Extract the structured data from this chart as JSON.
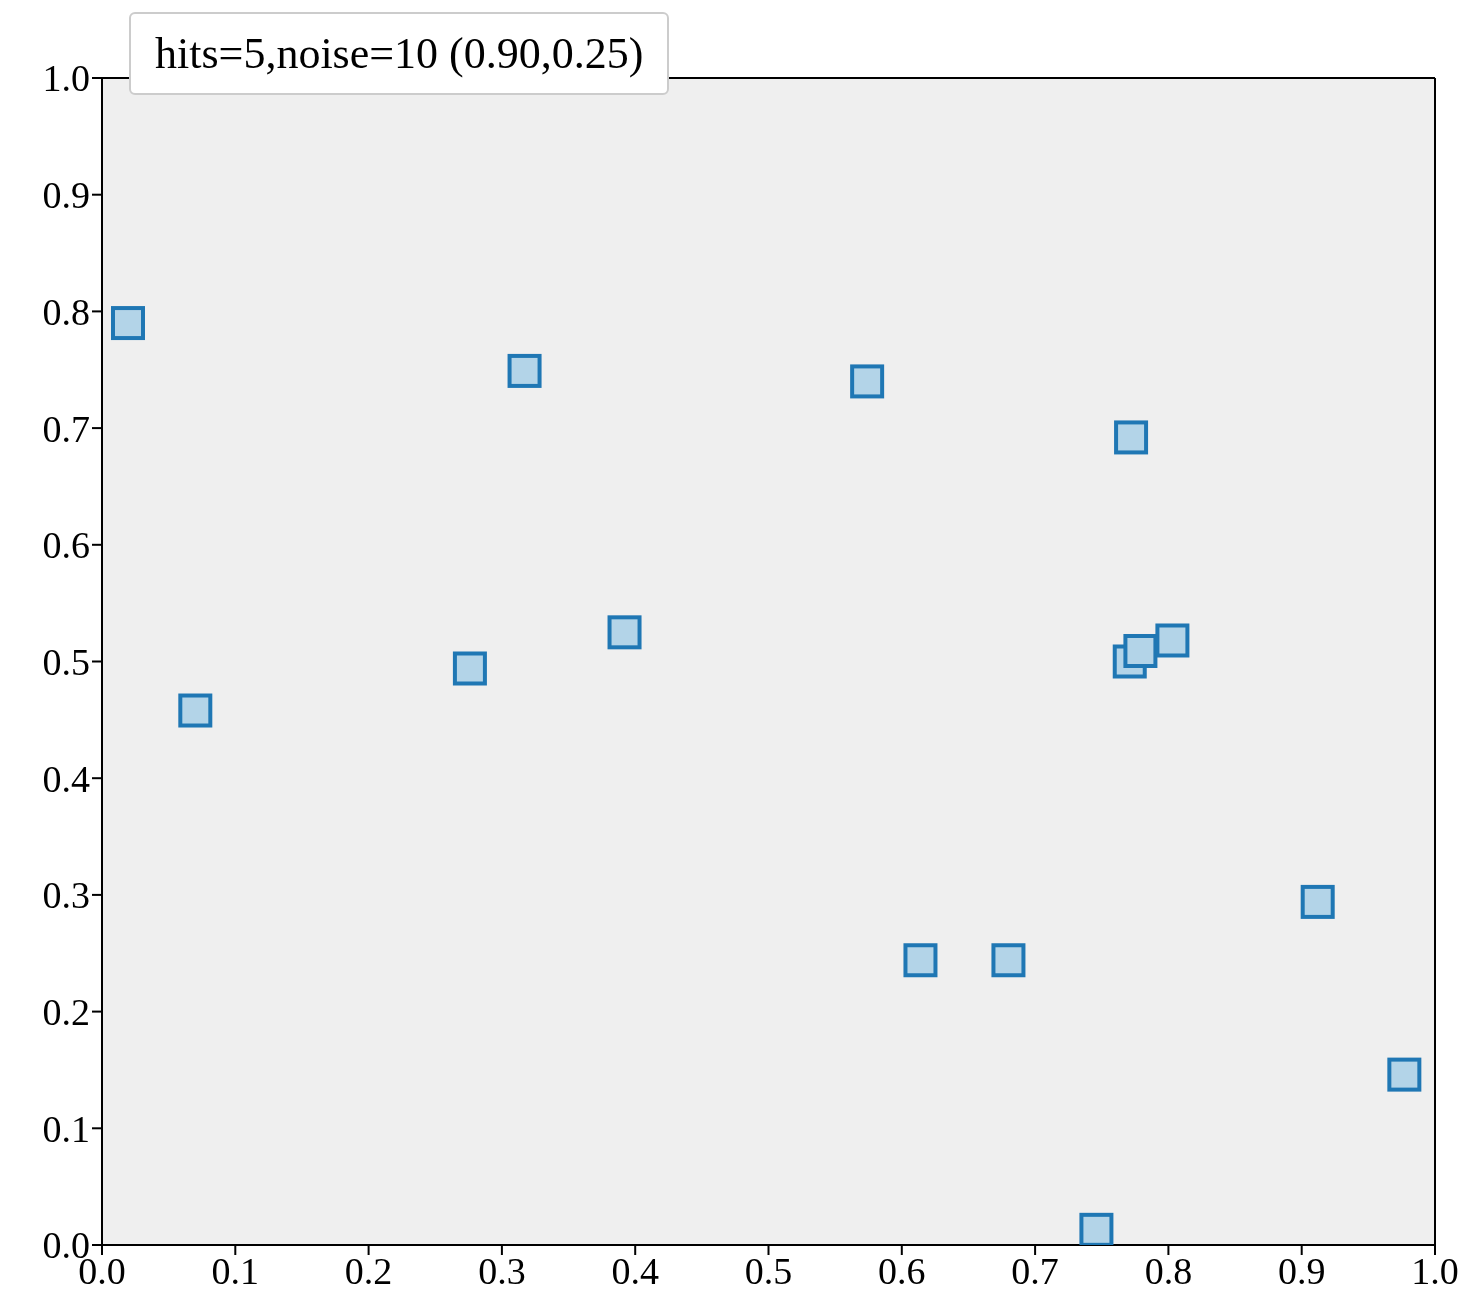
{
  "chart_data": {
    "type": "scatter",
    "legend_title": "hits=5,noise=10 (0.90,0.25)",
    "marker": "square",
    "series": [
      {
        "color": "#1f77b4",
        "x": [
          0.0195,
          0.07,
          0.276,
          0.317,
          0.392,
          0.574,
          0.614,
          0.68,
          0.746,
          0.772,
          0.771,
          0.779,
          0.803,
          0.912,
          0.977
        ],
        "values": [
          0.79,
          0.458,
          0.494,
          0.749,
          0.525,
          0.74,
          0.244,
          0.244,
          0.013,
          0.692,
          0.5,
          0.509,
          0.518,
          0.294,
          0.146
        ]
      }
    ],
    "xlim": [
      0,
      1
    ],
    "ylim": [
      0,
      1
    ],
    "xticks": [
      {
        "value": 0,
        "label": "0.0"
      },
      0.1,
      0.2,
      0.3,
      0.4,
      0.5,
      0.6,
      0.7,
      0.8,
      0.9,
      {
        "value": 1,
        "label": "1.0"
      }
    ],
    "yticks": [
      {
        "value": 0,
        "label": "0.0"
      },
      0.1,
      0.2,
      0.3,
      0.4,
      0.5,
      0.6,
      0.7,
      0.8,
      0.9,
      {
        "value": 1,
        "label": "1.0"
      }
    ]
  }
}
